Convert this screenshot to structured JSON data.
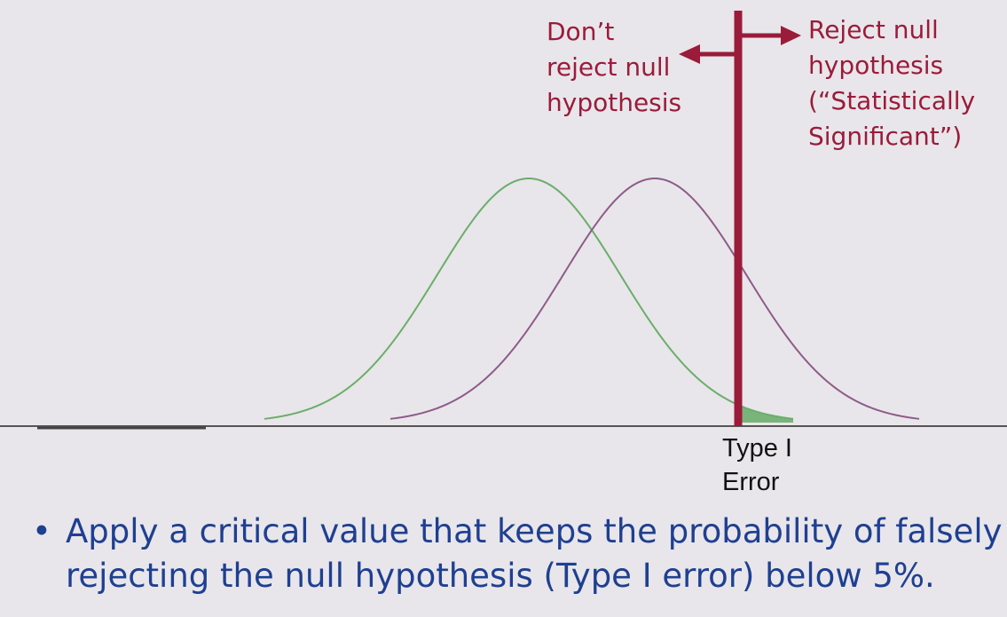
{
  "labels": {
    "dont_reject": [
      "Don’t",
      "reject null",
      "hypothesis"
    ],
    "reject": [
      "Reject null",
      "hypothesis",
      "(“Statistically",
      "Significant”)"
    ],
    "type_one_error": [
      "Type I",
      "Error"
    ]
  },
  "bullet": {
    "marker": "•",
    "lines": [
      "Apply a critical value that keeps the probability of falsely",
      "rejecting the null hypothesis (Type I error) below 5%."
    ]
  },
  "colors": {
    "background": "#e8e6ea",
    "maroon": "#9b1b3a",
    "null_curve": "#6aae6a",
    "alternative_curve": "#8e5b8a",
    "shaded_region": "#79b47b",
    "bullet_text": "#1f3f91"
  }
}
